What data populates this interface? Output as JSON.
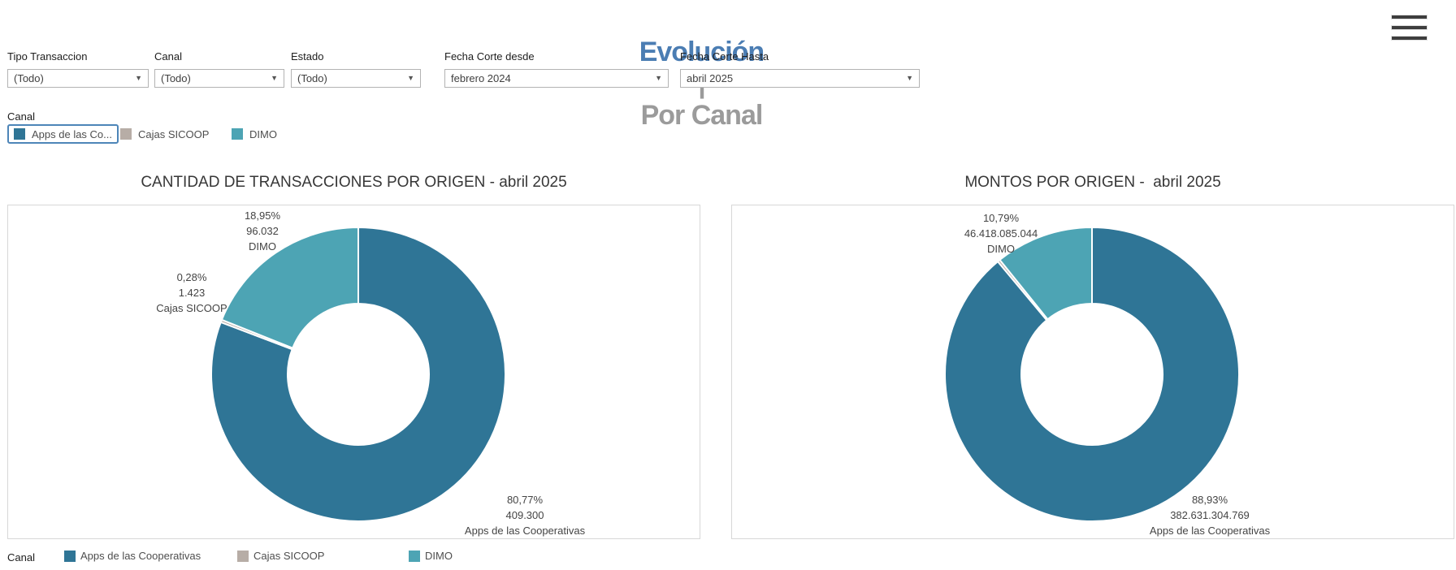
{
  "header": {
    "title_primary": "Evolución",
    "title_separator": "|",
    "title_secondary": "Por Canal",
    "title_primary_color": "#4b7db3",
    "title_secondary_color": "#9b9b9b"
  },
  "filters": [
    {
      "label": "Tipo Transaccion",
      "value": "(Todo)"
    },
    {
      "label": "Canal",
      "value": "(Todo)"
    },
    {
      "label": "Estado",
      "value": "(Todo)"
    },
    {
      "label": "Fecha Corte desde",
      "value": "febrero 2024"
    },
    {
      "label": "Fecha Corte Hasta",
      "value": "abril 2025"
    }
  ],
  "canal_legend": {
    "label": "Canal",
    "items": [
      {
        "label": "Apps de las Co...",
        "color": "#2f7596",
        "selected": true
      },
      {
        "label": "Cajas SICOOP",
        "color": "#b7ada6",
        "selected": false
      },
      {
        "label": "DIMO",
        "color": "#4da4b4",
        "selected": false
      }
    ]
  },
  "chart_data": [
    {
      "type": "pie",
      "donut": true,
      "title": "CANTIDAD DE TRANSACCIONES POR ORIGEN - abril 2025",
      "legend_position": "bottom",
      "slices": [
        {
          "name": "Apps de las Cooperativas",
          "pct": 80.77,
          "pct_label": "80,77%",
          "value": 409300,
          "value_label": "409.300",
          "color": "#2f7596"
        },
        {
          "name": "Cajas SICOOP",
          "pct": 0.28,
          "pct_label": "0,28%",
          "value": 1423,
          "value_label": "1.423",
          "color": "#b7ada6"
        },
        {
          "name": "DIMO",
          "pct": 18.95,
          "pct_label": "18,95%",
          "value": 96032,
          "value_label": "96.032",
          "color": "#4da4b4"
        }
      ]
    },
    {
      "type": "pie",
      "donut": true,
      "title": "MONTOS POR ORIGEN -  abril 2025",
      "legend_position": "bottom",
      "slices": [
        {
          "name": "Apps de las Cooperativas",
          "pct": 88.93,
          "pct_label": "88,93%",
          "value": 382631304769,
          "value_label": "382.631.304.769",
          "color": "#2f7596"
        },
        {
          "name": "Cajas SICOOP",
          "pct": 0.28,
          "color": "#b7ada6"
        },
        {
          "name": "DIMO",
          "pct": 10.79,
          "pct_label": "10,79%",
          "value": 46418085044,
          "value_label": "46.418.085.044",
          "color": "#4da4b4"
        }
      ]
    }
  ],
  "bottom_legend": {
    "label": "Canal",
    "items": [
      {
        "label": "Apps de las Cooperativas",
        "color": "#2f7596"
      },
      {
        "label": "Cajas SICOOP",
        "color": "#b7ada6"
      },
      {
        "label": "DIMO",
        "color": "#4da4b4"
      }
    ]
  }
}
